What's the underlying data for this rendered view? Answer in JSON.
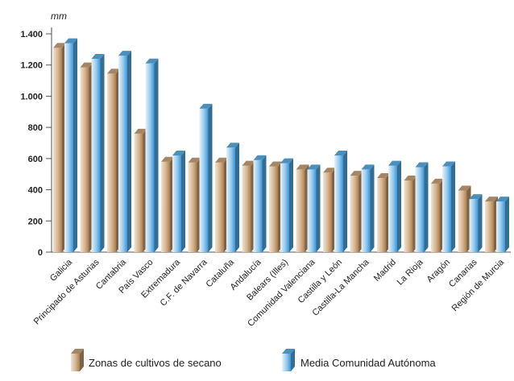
{
  "chart_data": {
    "type": "bar",
    "y_unit": "mm",
    "ylim": [
      0,
      1400
    ],
    "y_ticks": [
      0,
      200,
      400,
      600,
      800,
      1000,
      1200,
      1400
    ],
    "y_tick_labels": [
      "0",
      "200",
      "400",
      "600",
      "800",
      "1.000",
      "1.200",
      "1.400"
    ],
    "grid": false,
    "legend_position": "bottom",
    "categories": [
      "Galicia",
      "Principado de Asturias",
      "Cantabria",
      "País Vasco",
      "Extremadura",
      "C.F. de Navarra",
      "Cataluña",
      "Andalucía",
      "Balears (Illes)",
      "Comunidad Valenciana",
      "Castilla y León",
      "Castilla-La Mancha",
      "Madrid",
      "La Rioja",
      "Aragón",
      "Canarias",
      "Región de Murcia"
    ],
    "series": [
      {
        "name": "Zonas de cultivos de secano",
        "color": "#c8a27a",
        "values": [
          1310,
          1185,
          1145,
          760,
          580,
          575,
          575,
          555,
          550,
          530,
          510,
          490,
          475,
          460,
          440,
          395,
          325
        ]
      },
      {
        "name": "Media Comunidad Autónoma",
        "color": "#5aaee6",
        "values": [
          1340,
          1240,
          1260,
          1210,
          620,
          920,
          670,
          590,
          570,
          530,
          620,
          530,
          555,
          545,
          550,
          340,
          325
        ]
      }
    ]
  }
}
